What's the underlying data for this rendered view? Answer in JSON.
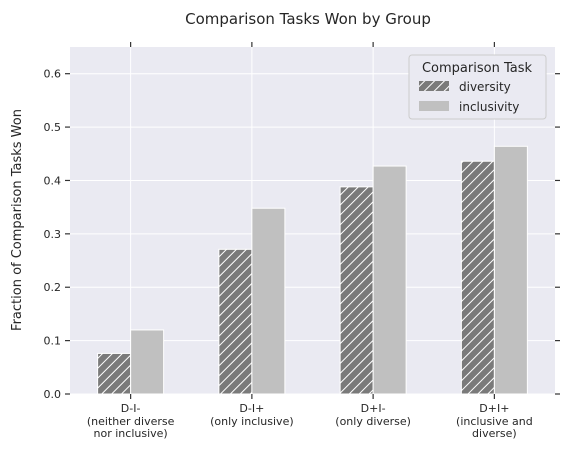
{
  "chart_data": {
    "type": "bar",
    "title": "Comparison Tasks Won by Group",
    "xlabel": "",
    "ylabel": "Fraction of Comparison Tasks Won",
    "ylim": [
      0,
      0.65
    ],
    "yticks": [
      0.0,
      0.1,
      0.2,
      0.3,
      0.4,
      0.5,
      0.6
    ],
    "ytick_labels": [
      "0.0",
      "0.1",
      "0.2",
      "0.3",
      "0.4",
      "0.5",
      "0.6"
    ],
    "categories": [
      {
        "label": "D-I-",
        "sub": [
          "(neither diverse",
          "nor inclusive)"
        ]
      },
      {
        "label": "D-I+",
        "sub": [
          "(only inclusive)"
        ]
      },
      {
        "label": "D+I-",
        "sub": [
          "(only diverse)"
        ]
      },
      {
        "label": "D+I+",
        "sub": [
          "(inclusive and",
          "diverse)"
        ]
      }
    ],
    "series": [
      {
        "name": "diversity",
        "values": [
          0.076,
          0.271,
          0.388,
          0.436
        ],
        "color": "#7a7a7a",
        "hatch": true
      },
      {
        "name": "inclusivity",
        "values": [
          0.12,
          0.348,
          0.427,
          0.464
        ],
        "color": "#c0c0c0",
        "hatch": false
      }
    ],
    "legend": {
      "title": "Comparison Task",
      "placement": "top-right"
    },
    "grid": true,
    "plot_bg": "#eaeaf2",
    "grid_color": "#ffffff"
  }
}
